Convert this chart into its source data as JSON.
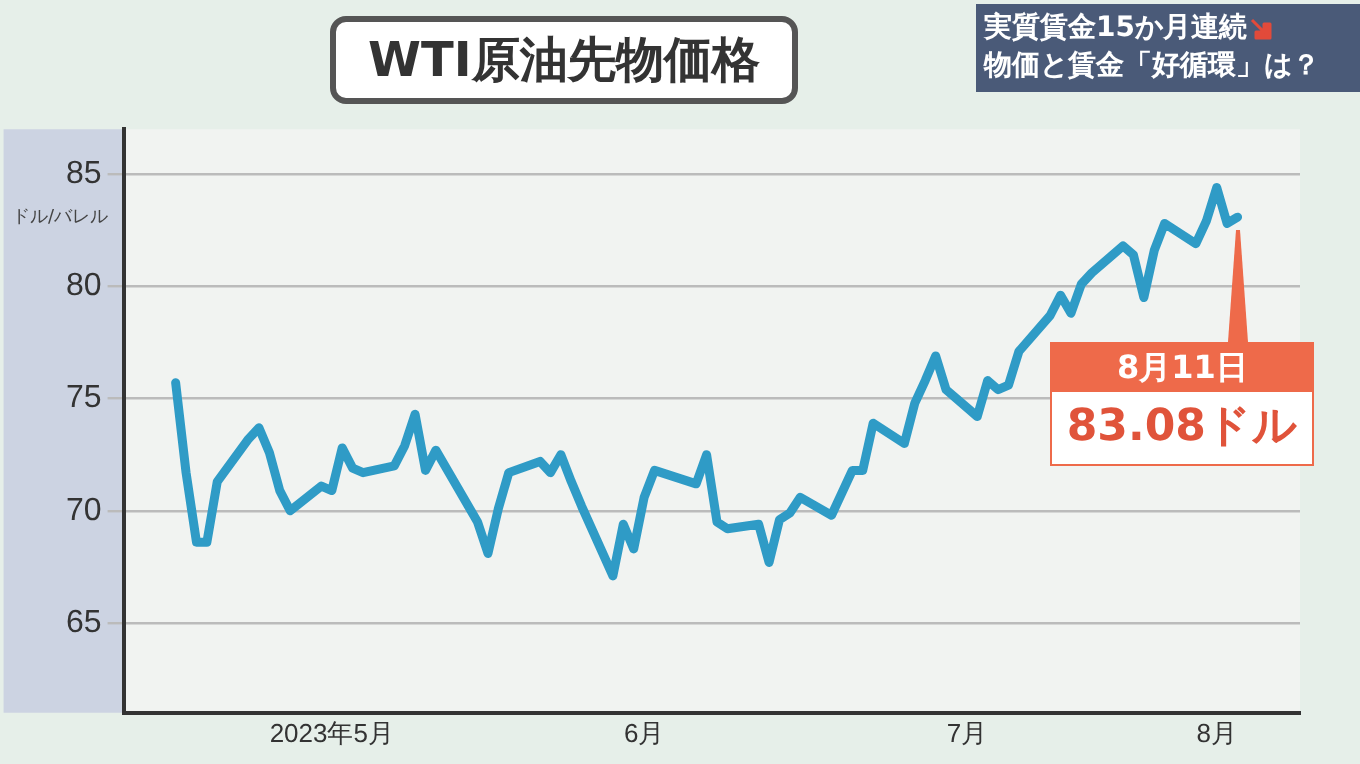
{
  "chart_data": {
    "type": "line",
    "title": "WTI原油先物価格",
    "ylabel": "ドル/バレル",
    "annotations": [
      "実質賃金15か月連続",
      "物価と賃金「好循環」は？",
      {
        "text": "8月11日\n83.08ドル",
        "x": "2023-08-11",
        "y": 83.08
      }
    ],
    "x": [
      "2023-05-01",
      "2023-05-02",
      "2023-05-03",
      "2023-05-04",
      "2023-05-05",
      "2023-05-08",
      "2023-05-09",
      "2023-05-10",
      "2023-05-11",
      "2023-05-12",
      "2023-05-15",
      "2023-05-16",
      "2023-05-17",
      "2023-05-18",
      "2023-05-19",
      "2023-05-22",
      "2023-05-23",
      "2023-05-24",
      "2023-05-25",
      "2023-05-26",
      "2023-05-30",
      "2023-05-31",
      "2023-06-01",
      "2023-06-02",
      "2023-06-05",
      "2023-06-06",
      "2023-06-07",
      "2023-06-08",
      "2023-06-09",
      "2023-06-12",
      "2023-06-13",
      "2023-06-14",
      "2023-06-15",
      "2023-06-16",
      "2023-06-20",
      "2023-06-21",
      "2023-06-22",
      "2023-06-23",
      "2023-06-26",
      "2023-06-27",
      "2023-06-28",
      "2023-06-29",
      "2023-06-30",
      "2023-07-03",
      "2023-07-05",
      "2023-07-06",
      "2023-07-07",
      "2023-07-10",
      "2023-07-11",
      "2023-07-12",
      "2023-07-13",
      "2023-07-14",
      "2023-07-17",
      "2023-07-18",
      "2023-07-19",
      "2023-07-20",
      "2023-07-21",
      "2023-07-24",
      "2023-07-25",
      "2023-07-26",
      "2023-07-27",
      "2023-07-28",
      "2023-07-31",
      "2023-08-01",
      "2023-08-02",
      "2023-08-03",
      "2023-08-04",
      "2023-08-07",
      "2023-08-08",
      "2023-08-09",
      "2023-08-10",
      "2023-08-11"
    ],
    "series": [
      {
        "color": "#2f9bc6",
        "values": [
          75.7,
          71.7,
          68.6,
          68.6,
          71.3,
          73.2,
          73.7,
          72.6,
          70.9,
          70.0,
          71.1,
          70.9,
          72.8,
          71.9,
          71.7,
          72.0,
          72.9,
          74.3,
          71.8,
          72.7,
          69.5,
          68.1,
          70.1,
          71.7,
          72.2,
          71.7,
          72.5,
          71.3,
          70.2,
          67.1,
          69.4,
          68.3,
          70.6,
          71.8,
          71.2,
          72.5,
          69.5,
          69.2,
          69.4,
          67.7,
          69.6,
          69.9,
          70.6,
          69.8,
          71.8,
          71.8,
          73.9,
          73.0,
          74.8,
          75.8,
          76.9,
          75.4,
          74.2,
          75.8,
          75.4,
          75.6,
          77.1,
          78.7,
          79.6,
          78.8,
          80.1,
          80.6,
          81.8,
          81.4,
          79.5,
          81.6,
          82.8,
          81.9,
          82.9,
          84.4,
          82.8,
          83.08
        ]
      }
    ],
    "xlim": [
      "2023-04-26",
      "2023-08-17"
    ],
    "xticks": [
      {
        "value": "2023-05-16",
        "label": "2023年5月"
      },
      {
        "value": "2023-06-15",
        "label": "6月"
      },
      {
        "value": "2023-07-16",
        "label": "7月"
      },
      {
        "value": "2023-08-09",
        "label": "8月"
      }
    ],
    "ylim": [
      61,
      87
    ],
    "yticks": [
      65,
      70,
      75,
      80,
      85
    ],
    "grid": "y",
    "line_style": "solid",
    "marker": "none"
  }
}
